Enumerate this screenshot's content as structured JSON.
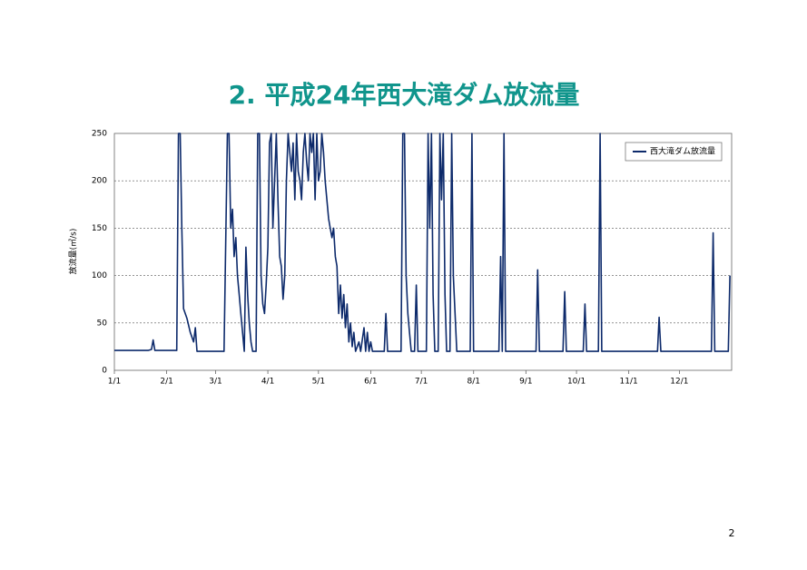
{
  "chart_data": {
    "type": "line",
    "title": "2. 平成24年西大滝ダム放流量",
    "y_label": "放流量(㎥/s)",
    "page_number": "2",
    "xlim": [
      0,
      366
    ],
    "xticks": [
      {
        "value": 0,
        "label": "1/1"
      },
      {
        "value": 31,
        "label": "2/1"
      },
      {
        "value": 60,
        "label": "3/1"
      },
      {
        "value": 91,
        "label": "4/1"
      },
      {
        "value": 121,
        "label": "5/1"
      },
      {
        "value": 152,
        "label": "6/1"
      },
      {
        "value": 182,
        "label": "7/1"
      },
      {
        "value": 213,
        "label": "8/1"
      },
      {
        "value": 244,
        "label": "9/1"
      },
      {
        "value": 274,
        "label": "10/1"
      },
      {
        "value": 305,
        "label": "11/1"
      },
      {
        "value": 335,
        "label": "12/1"
      }
    ],
    "ylim": [
      0,
      250
    ],
    "yticks": [
      0,
      50,
      100,
      150,
      200,
      250
    ],
    "grid": true,
    "legend": "upper right",
    "series": [
      {
        "name": "西大滝ダム放流量",
        "color": "#0d2a6b",
        "x": [
          0,
          20,
          22,
          23,
          24,
          37,
          38,
          39,
          40,
          41,
          43,
          45,
          47,
          48,
          49,
          65,
          67,
          68,
          69,
          70,
          71,
          72,
          73,
          74,
          75,
          76,
          77,
          78,
          79,
          80,
          81,
          82,
          84,
          85,
          86,
          87,
          88,
          89,
          90,
          91,
          92,
          93,
          94,
          95,
          96,
          97,
          98,
          99,
          100,
          101,
          102,
          103,
          104,
          105,
          106,
          107,
          108,
          109,
          110,
          111,
          112,
          113,
          114,
          115,
          116,
          117,
          118,
          119,
          120,
          121,
          122,
          123,
          124,
          125,
          126,
          127,
          128,
          129,
          130,
          131,
          132,
          133,
          134,
          135,
          136,
          137,
          138,
          139,
          140,
          141,
          142,
          143,
          145,
          146,
          148,
          149,
          150,
          151,
          152,
          153,
          160,
          161,
          162,
          170,
          171,
          172,
          173,
          174,
          175,
          176,
          178,
          179,
          180,
          185,
          186,
          187,
          188,
          189,
          190,
          192,
          193,
          194,
          195,
          196,
          197,
          199,
          200,
          201,
          202,
          203,
          211,
          212,
          213,
          228,
          229,
          230,
          231,
          232,
          250,
          251,
          252,
          266,
          267,
          268,
          278,
          279,
          280,
          287,
          288,
          289,
          322,
          323,
          324,
          354,
          355,
          356,
          364,
          365
        ],
        "values": [
          21,
          21,
          22,
          32,
          21,
          21,
          250,
          250,
          150,
          65,
          55,
          40,
          30,
          45,
          20,
          20,
          250,
          250,
          150,
          170,
          120,
          140,
          100,
          80,
          60,
          40,
          20,
          130,
          80,
          50,
          30,
          20,
          20,
          250,
          250,
          100,
          70,
          60,
          90,
          130,
          240,
          250,
          150,
          200,
          250,
          180,
          120,
          110,
          75,
          100,
          200,
          250,
          230,
          210,
          240,
          180,
          250,
          210,
          200,
          180,
          230,
          250,
          220,
          200,
          250,
          230,
          250,
          180,
          250,
          200,
          210,
          250,
          230,
          200,
          180,
          160,
          150,
          140,
          150,
          120,
          110,
          60,
          90,
          55,
          80,
          45,
          70,
          30,
          50,
          25,
          40,
          20,
          30,
          20,
          45,
          20,
          40,
          20,
          30,
          20,
          20,
          60,
          20,
          20,
          250,
          250,
          100,
          60,
          40,
          20,
          20,
          90,
          20,
          20,
          250,
          150,
          250,
          80,
          20,
          20,
          250,
          180,
          250,
          80,
          20,
          20,
          250,
          100,
          60,
          20,
          20,
          250,
          20,
          20,
          120,
          20,
          250,
          20,
          20,
          106,
          20,
          20,
          83,
          20,
          20,
          70,
          20,
          20,
          250,
          20,
          20,
          56,
          20,
          20,
          145,
          20,
          20,
          100
        ]
      }
    ]
  }
}
